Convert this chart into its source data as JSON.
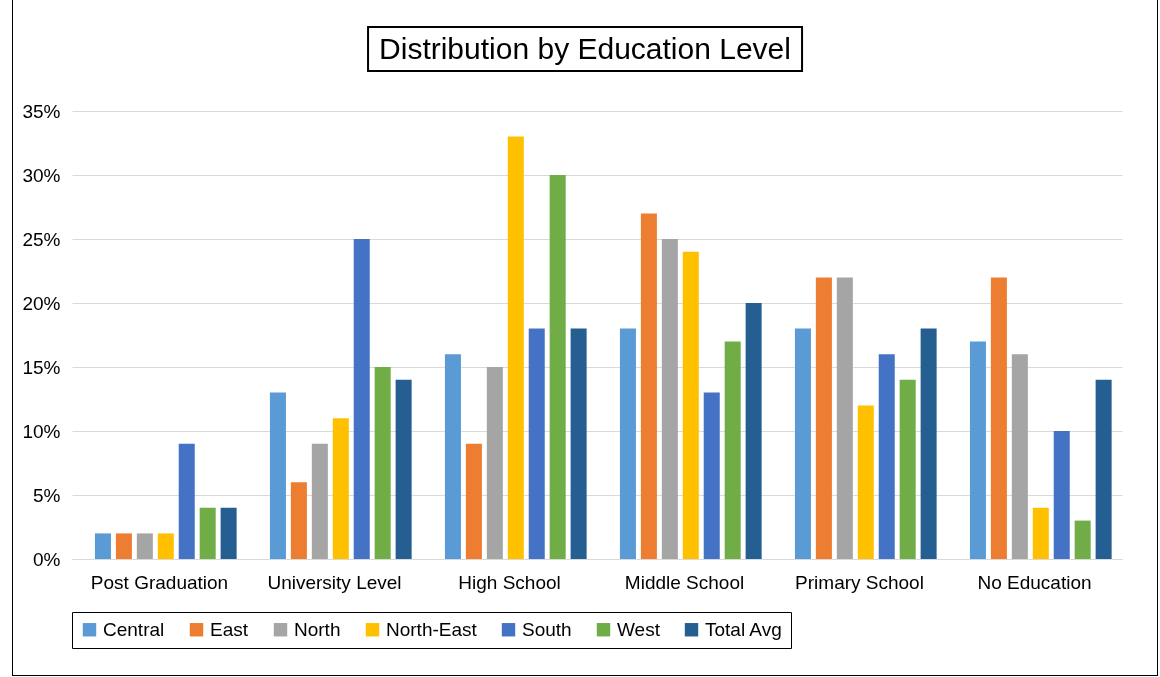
{
  "chart_data": {
    "type": "bar",
    "title": "Distribution by Education Level",
    "categories": [
      "Post Graduation",
      "University Level",
      "High School",
      "Middle School",
      "Primary School",
      "No Education"
    ],
    "series": [
      {
        "name": "Central",
        "color": "#5b9bd5",
        "values": [
          2,
          13,
          16,
          18,
          18,
          17
        ]
      },
      {
        "name": "East",
        "color": "#ed7d31",
        "values": [
          2,
          6,
          9,
          27,
          22,
          22
        ]
      },
      {
        "name": "North",
        "color": "#a5a5a5",
        "values": [
          2,
          9,
          15,
          25,
          22,
          16
        ]
      },
      {
        "name": "North-East",
        "color": "#ffc000",
        "values": [
          2,
          11,
          33,
          24,
          12,
          4
        ]
      },
      {
        "name": "South",
        "color": "#4472c4",
        "values": [
          9,
          25,
          18,
          13,
          16,
          10
        ]
      },
      {
        "name": "West",
        "color": "#70ad47",
        "values": [
          4,
          15,
          30,
          17,
          14,
          3
        ]
      },
      {
        "name": "Total Avg",
        "color": "#255e91",
        "values": [
          4,
          14,
          18,
          20,
          18,
          14
        ]
      }
    ],
    "ylim": [
      0,
      35
    ],
    "yticks": [
      {
        "value": 0,
        "label": "0%"
      },
      {
        "value": 5,
        "label": "5%"
      },
      {
        "value": 10,
        "label": "10%"
      },
      {
        "value": 15,
        "label": "15%"
      },
      {
        "value": 20,
        "label": "20%"
      },
      {
        "value": 25,
        "label": "25%"
      },
      {
        "value": 30,
        "label": "30%"
      },
      {
        "value": 35,
        "label": "35%"
      }
    ],
    "grid": "y",
    "legend": "bottom"
  }
}
